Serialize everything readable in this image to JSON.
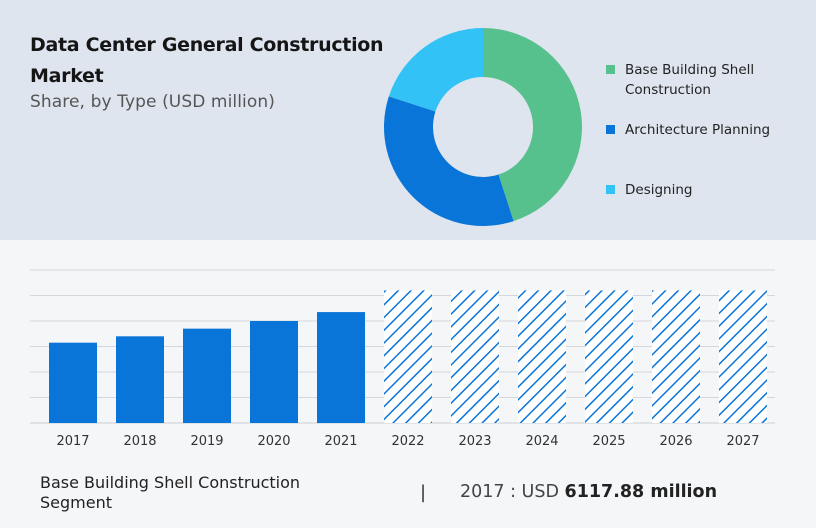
{
  "header": {
    "title": "Data Center General Construction Market",
    "subtitle": "Share, by Type (USD million)"
  },
  "colors": {
    "base_building": "#57c18e",
    "architecture": "#0a75d8",
    "designing": "#33c2f5",
    "bar": "#0a75d8",
    "grid": "#d4d7dc"
  },
  "chart_data": [
    {
      "type": "pie",
      "donut": true,
      "title": "Share, by Type (USD million)",
      "labels": [
        "Base Building Shell Construction",
        "Architecture Planning",
        "Designing"
      ],
      "values": [
        45,
        35,
        20
      ],
      "legend_position": "right"
    },
    {
      "type": "bar",
      "categories": [
        "2017",
        "2018",
        "2019",
        "2020",
        "2021",
        "2022",
        "2023",
        "2024",
        "2025",
        "2026",
        "2027"
      ],
      "values": [
        63,
        68,
        74,
        80,
        87,
        104,
        104,
        104,
        104,
        104,
        104
      ],
      "forecast_from": "2022",
      "ylim": [
        0,
        120
      ],
      "grid": true,
      "xlabel": "",
      "ylabel": ""
    }
  ],
  "footer": {
    "segment": "Base Building Shell Construction Segment",
    "separator": "|",
    "value_prefix": "2017 : USD",
    "value_bold": "6117.88 million"
  }
}
